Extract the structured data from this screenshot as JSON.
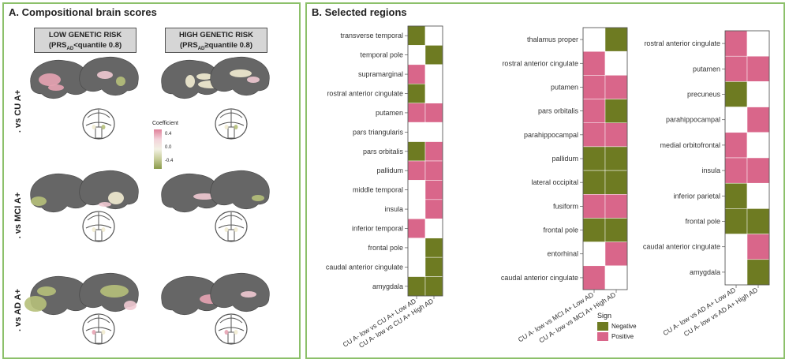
{
  "panelA": {
    "title": "A. Compositional brain scores",
    "col_headers": [
      {
        "line1": "LOW GENETIC RISK",
        "line2_pre": "(PRS",
        "line2_sub": "AD",
        "line2_post": "<quantile 0.8)"
      },
      {
        "line1": "HIGH GENETIC RISK",
        "line2_pre": "(PRS",
        "line2_sub": "AD",
        "line2_post": "≥quantile 0.8)"
      }
    ],
    "row_labels": [
      ". vs CU A+",
      ". vs MCI A+",
      ". vs AD A+"
    ],
    "colorbar": {
      "title": "Coefficient",
      "ticks": [
        "0.4",
        "0.0",
        "-0.4"
      ],
      "pos_color": "#e0819a",
      "neg_color": "#8a9a4a"
    }
  },
  "panelB": {
    "title": "B. Selected regions"
  },
  "legend": {
    "title": "Sign",
    "items": [
      {
        "label": "Negative",
        "color": "#6e7b22"
      },
      {
        "label": "Positive",
        "color": "#d9668a"
      }
    ]
  },
  "colors": {
    "neg": "#6e7b22",
    "pos": "#d9668a",
    "none": "#ffffff",
    "border": "#8cc06a"
  },
  "chart_data": [
    {
      "type": "heatmap",
      "columns": [
        "CU A- low vs CU A+ Low AD",
        "CU A- low vs CU A+ High AD"
      ],
      "rows": [
        "transverse temporal",
        "temporal pole",
        "supramarginal",
        "rostral anterior cingulate",
        "putamen",
        "pars triangularis",
        "pars orbitalis",
        "pallidum",
        "middle temporal",
        "insula",
        "inferior temporal",
        "frontal pole",
        "caudal anterior cingulate",
        "amygdala"
      ],
      "values": [
        [
          "neg",
          "none"
        ],
        [
          "none",
          "neg"
        ],
        [
          "pos",
          "none"
        ],
        [
          "neg",
          "none"
        ],
        [
          "pos",
          "pos"
        ],
        [
          "none",
          "none"
        ],
        [
          "neg",
          "pos"
        ],
        [
          "pos",
          "pos"
        ],
        [
          "none",
          "pos"
        ],
        [
          "none",
          "pos"
        ],
        [
          "pos",
          "none"
        ],
        [
          "none",
          "neg"
        ],
        [
          "none",
          "neg"
        ],
        [
          "neg",
          "neg"
        ]
      ]
    },
    {
      "type": "heatmap",
      "columns": [
        "CU A- low vs MCI A+ Low AD",
        "CU A- low vs MCI A+ High AD"
      ],
      "rows": [
        "thalamus proper",
        "rostral anterior cingulate",
        "putamen",
        "pars orbitalis",
        "parahippocampal",
        "pallidum",
        "lateral occipital",
        "fusiform",
        "frontal pole",
        "entorhinal",
        "caudal anterior cingulate"
      ],
      "values": [
        [
          "none",
          "neg"
        ],
        [
          "pos",
          "none"
        ],
        [
          "pos",
          "pos"
        ],
        [
          "pos",
          "neg"
        ],
        [
          "pos",
          "pos"
        ],
        [
          "neg",
          "neg"
        ],
        [
          "neg",
          "neg"
        ],
        [
          "pos",
          "pos"
        ],
        [
          "neg",
          "neg"
        ],
        [
          "none",
          "pos"
        ],
        [
          "pos",
          "none"
        ]
      ]
    },
    {
      "type": "heatmap",
      "columns": [
        "CU A- low vs AD A+ Low AD",
        "CU A- low vs AD A+ High AD"
      ],
      "rows": [
        "rostral anterior cingulate",
        "putamen",
        "precuneus",
        "parahippocampal",
        "medial orbitofrontal",
        "insula",
        "inferior parietal",
        "frontal pole",
        "caudal anterior cingulate",
        "amygdala"
      ],
      "values": [
        [
          "pos",
          "none"
        ],
        [
          "pos",
          "pos"
        ],
        [
          "neg",
          "none"
        ],
        [
          "none",
          "pos"
        ],
        [
          "pos",
          "none"
        ],
        [
          "pos",
          "pos"
        ],
        [
          "neg",
          "none"
        ],
        [
          "neg",
          "neg"
        ],
        [
          "none",
          "pos"
        ],
        [
          "none",
          "neg"
        ]
      ]
    }
  ]
}
